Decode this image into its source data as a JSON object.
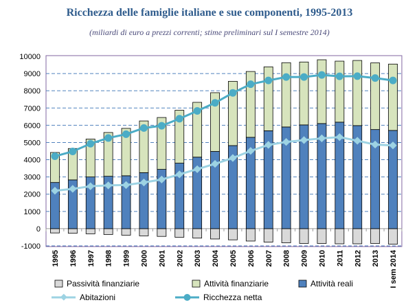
{
  "chart_data": {
    "type": "bar",
    "title": "Ricchezza delle famiglie italiane e sue componenti, 1995-2013",
    "subtitle": "(miliardi di euro a prezzi correnti; stime preliminari sul I semestre 2014)",
    "categories": [
      "1995",
      "1996",
      "1997",
      "1998",
      "1999",
      "2000",
      "2001",
      "2002",
      "2003",
      "2004",
      "2005",
      "2006",
      "2007",
      "2008",
      "2009",
      "2010",
      "2011",
      "2012",
      "2013",
      "I sem 2014"
    ],
    "ylim": [
      -1000,
      10000
    ],
    "yticks": [
      -1000,
      0,
      1000,
      2000,
      3000,
      4000,
      5000,
      6000,
      7000,
      8000,
      9000,
      10000
    ],
    "grid": true,
    "legend_position": "bottom",
    "series": [
      {
        "name": "Passività finanziarie",
        "kind": "bar",
        "color": "#d9d9d9",
        "values": [
          -250,
          -270,
          -300,
          -340,
          -380,
          -420,
          -450,
          -500,
          -550,
          -600,
          -650,
          -720,
          -780,
          -820,
          -860,
          -860,
          -880,
          -880,
          -860,
          -900
        ]
      },
      {
        "name": "Attività finanziarie",
        "kind": "bar",
        "color": "#d7e4bd",
        "values": [
          1740,
          1820,
          2200,
          2540,
          2750,
          3000,
          3010,
          3070,
          3180,
          3410,
          3730,
          3820,
          3710,
          3730,
          3650,
          3700,
          3540,
          3780,
          3870,
          3850
        ]
      },
      {
        "name": "Attività reali",
        "kind": "bar",
        "color": "#4f81bd",
        "values": [
          2680,
          2830,
          3000,
          3040,
          3070,
          3250,
          3440,
          3800,
          4150,
          4480,
          4820,
          5300,
          5680,
          5900,
          6020,
          6100,
          6180,
          5980,
          5750,
          5700
        ]
      },
      {
        "name": "Abitazioni",
        "kind": "line",
        "color": "#9dd3e3",
        "values": [
          2200,
          2310,
          2460,
          2510,
          2530,
          2680,
          2850,
          3150,
          3450,
          3760,
          4100,
          4510,
          4860,
          5030,
          5140,
          5240,
          5310,
          5100,
          4880,
          4830
        ]
      },
      {
        "name": "Ricchezza netta",
        "kind": "line",
        "color": "#4bacc6",
        "values": [
          4200,
          4480,
          4930,
          5260,
          5480,
          5840,
          5970,
          6380,
          6830,
          7300,
          7880,
          8380,
          8600,
          8800,
          8800,
          8920,
          8840,
          8850,
          8740,
          8600
        ]
      }
    ]
  }
}
